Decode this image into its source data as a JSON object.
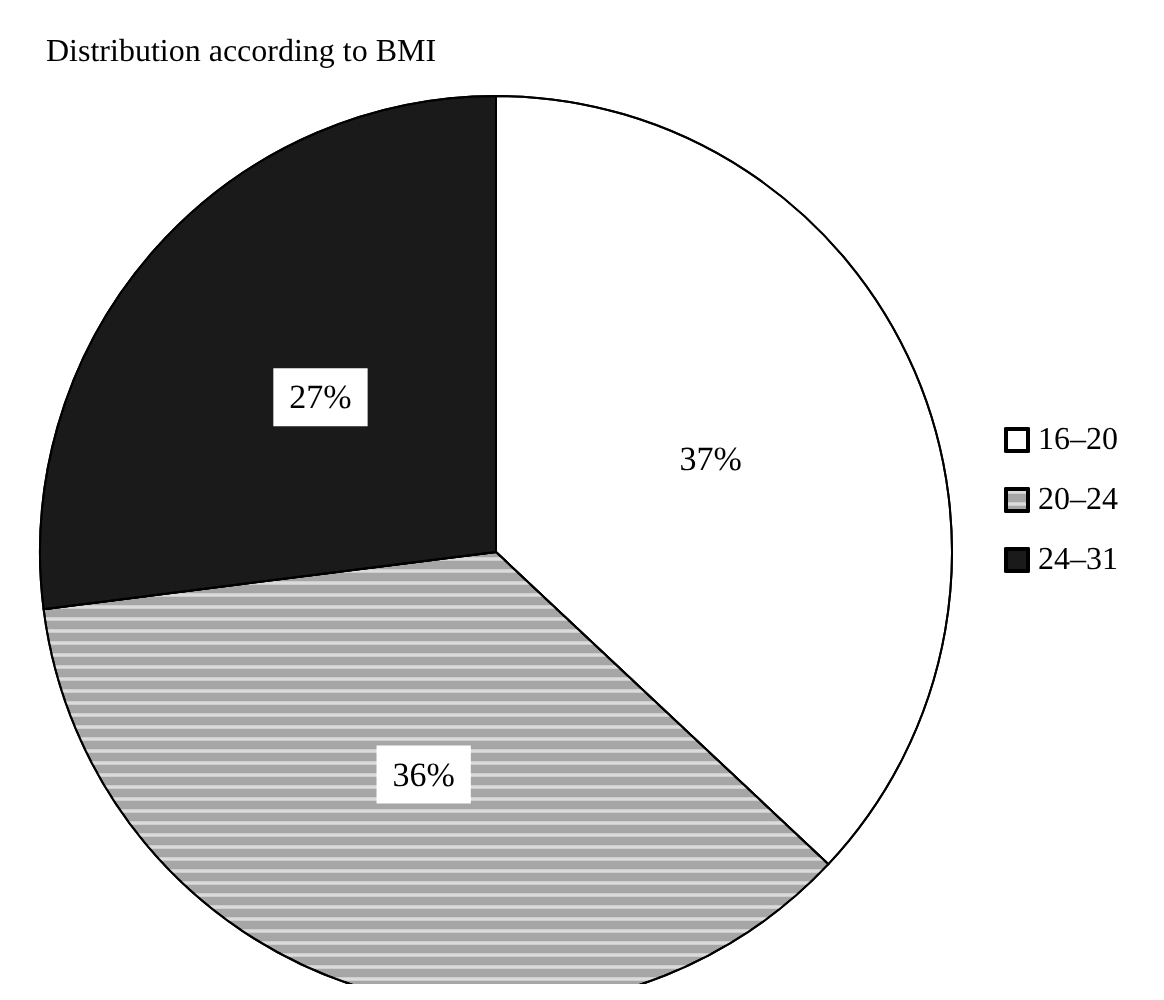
{
  "chart_data": {
    "type": "pie",
    "title": "Distribution according to BMI",
    "categories": [
      "16–20",
      "20–24",
      "24–31"
    ],
    "values": [
      37,
      36,
      27
    ],
    "value_labels": [
      "37%",
      "36%",
      "27%"
    ],
    "colors": [
      "#ffffff",
      "#a6a6a6",
      "#1a1a1a"
    ],
    "legend": "right"
  }
}
